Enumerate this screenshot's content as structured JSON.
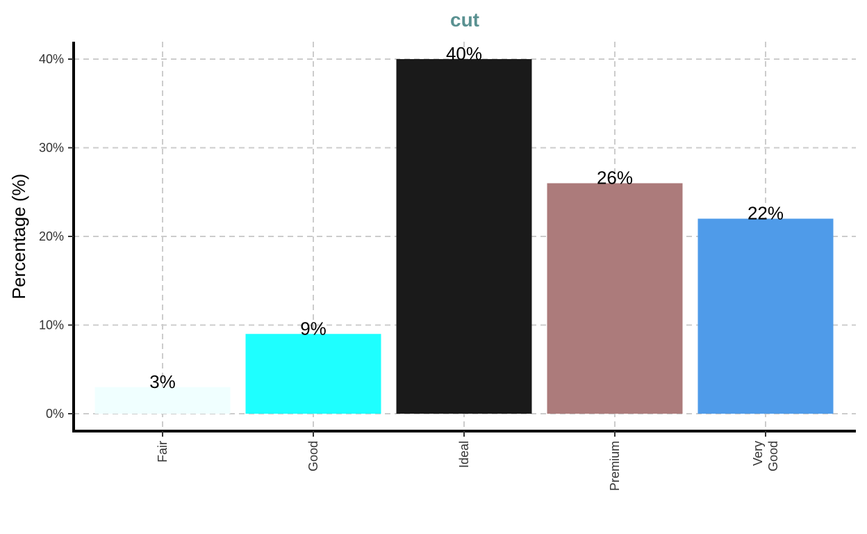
{
  "chart_data": {
    "type": "bar",
    "title": "cut",
    "xlabel": "",
    "ylabel": "Percentage (%)",
    "categories": [
      "Fair",
      "Good",
      "Ideal",
      "Premium",
      "Very Good"
    ],
    "category_lines": [
      [
        "Fair"
      ],
      [
        "Good"
      ],
      [
        "Ideal"
      ],
      [
        "Premium"
      ],
      [
        "Very",
        "Good"
      ]
    ],
    "values": [
      3,
      9,
      40,
      26,
      22
    ],
    "value_labels": [
      "3%",
      "9%",
      "40%",
      "26%",
      "22%"
    ],
    "bar_colors": [
      "#f0ffff",
      "#1effff",
      "#1a1a1a",
      "#ac7b7b",
      "#4f9be9"
    ],
    "ylim": [
      0,
      40
    ],
    "yticks": [
      0,
      10,
      20,
      30,
      40
    ],
    "ytick_labels": [
      "0%",
      "10%",
      "20%",
      "30%",
      "40%"
    ],
    "grid": true,
    "legend": "none"
  },
  "colors": {
    "title": "#5a9191",
    "grid": "#cccccc",
    "axis": "#000000"
  }
}
